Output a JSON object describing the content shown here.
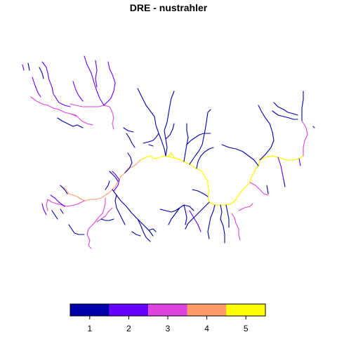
{
  "title": "DRE - nustrahler",
  "palette": [
    "#0000AA",
    "#6600FF",
    "#DD44DD",
    "#FF9966",
    "#FFFF00"
  ],
  "legend": {
    "labels": [
      "1",
      "2",
      "3",
      "4",
      "5"
    ],
    "colors": [
      "#0000AA",
      "#6600FF",
      "#DD44DD",
      "#FF9966",
      "#FFFF00"
    ]
  },
  "map_data": {
    "type": "stream-network",
    "attribute": "nustrahler",
    "order_range": [
      1,
      5
    ]
  }
}
